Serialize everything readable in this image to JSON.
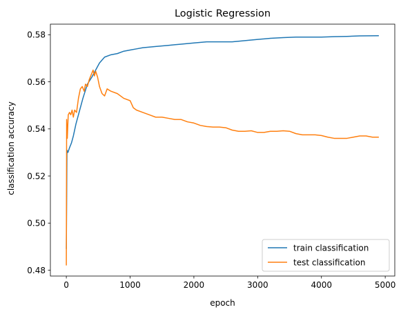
{
  "chart_data": {
    "type": "line",
    "title": "Logistic Regression",
    "xlabel": "epoch",
    "ylabel": "classification accuracy",
    "xlim": [
      -250,
      5150
    ],
    "ylim": [
      0.4775,
      0.5845
    ],
    "xticks": [
      0,
      1000,
      2000,
      3000,
      4000,
      5000
    ],
    "xtick_labels": [
      "0",
      "1000",
      "2000",
      "3000",
      "4000",
      "5000"
    ],
    "yticks": [
      0.48,
      0.5,
      0.52,
      0.54,
      0.56,
      0.58
    ],
    "ytick_labels": [
      "0.48",
      "0.50",
      "0.52",
      "0.54",
      "0.56",
      "0.58"
    ],
    "grid": false,
    "legend_position": "lower-right",
    "series": [
      {
        "name": "train classification",
        "color": "#1f77b4",
        "points": [
          [
            0,
            0.489
          ],
          [
            10,
            0.531
          ],
          [
            25,
            0.53
          ],
          [
            50,
            0.532
          ],
          [
            80,
            0.534
          ],
          [
            110,
            0.537
          ],
          [
            150,
            0.542
          ],
          [
            200,
            0.547
          ],
          [
            260,
            0.553
          ],
          [
            330,
            0.559
          ],
          [
            400,
            0.562
          ],
          [
            460,
            0.565
          ],
          [
            520,
            0.568
          ],
          [
            600,
            0.5705
          ],
          [
            700,
            0.5715
          ],
          [
            800,
            0.572
          ],
          [
            900,
            0.573
          ],
          [
            1000,
            0.5735
          ],
          [
            1100,
            0.574
          ],
          [
            1200,
            0.5745
          ],
          [
            1400,
            0.575
          ],
          [
            1600,
            0.5755
          ],
          [
            1800,
            0.576
          ],
          [
            2000,
            0.5765
          ],
          [
            2200,
            0.577
          ],
          [
            2400,
            0.577
          ],
          [
            2600,
            0.577
          ],
          [
            2800,
            0.5775
          ],
          [
            3000,
            0.578
          ],
          [
            3200,
            0.5785
          ],
          [
            3400,
            0.5788
          ],
          [
            3600,
            0.579
          ],
          [
            3800,
            0.579
          ],
          [
            4000,
            0.579
          ],
          [
            4200,
            0.5792
          ],
          [
            4400,
            0.5793
          ],
          [
            4600,
            0.5795
          ],
          [
            4900,
            0.5796
          ]
        ]
      },
      {
        "name": "test classification",
        "color": "#ff7f0e",
        "points": [
          [
            0,
            0.482
          ],
          [
            5,
            0.544
          ],
          [
            15,
            0.536
          ],
          [
            30,
            0.546
          ],
          [
            50,
            0.547
          ],
          [
            70,
            0.546
          ],
          [
            90,
            0.548
          ],
          [
            110,
            0.545
          ],
          [
            130,
            0.548
          ],
          [
            160,
            0.547
          ],
          [
            190,
            0.553
          ],
          [
            220,
            0.557
          ],
          [
            250,
            0.558
          ],
          [
            280,
            0.556
          ],
          [
            300,
            0.559
          ],
          [
            330,
            0.558
          ],
          [
            360,
            0.561
          ],
          [
            390,
            0.563
          ],
          [
            420,
            0.565
          ],
          [
            440,
            0.5625
          ],
          [
            460,
            0.5645
          ],
          [
            490,
            0.562
          ],
          [
            520,
            0.558
          ],
          [
            560,
            0.555
          ],
          [
            600,
            0.554
          ],
          [
            640,
            0.557
          ],
          [
            700,
            0.556
          ],
          [
            800,
            0.555
          ],
          [
            900,
            0.553
          ],
          [
            1000,
            0.552
          ],
          [
            1050,
            0.549
          ],
          [
            1100,
            0.548
          ],
          [
            1200,
            0.547
          ],
          [
            1300,
            0.546
          ],
          [
            1400,
            0.545
          ],
          [
            1500,
            0.545
          ],
          [
            1600,
            0.5445
          ],
          [
            1700,
            0.544
          ],
          [
            1800,
            0.544
          ],
          [
            1900,
            0.543
          ],
          [
            2000,
            0.5425
          ],
          [
            2100,
            0.5415
          ],
          [
            2200,
            0.541
          ],
          [
            2300,
            0.5408
          ],
          [
            2400,
            0.5408
          ],
          [
            2500,
            0.5405
          ],
          [
            2600,
            0.5395
          ],
          [
            2700,
            0.539
          ],
          [
            2800,
            0.539
          ],
          [
            2900,
            0.5392
          ],
          [
            3000,
            0.5385
          ],
          [
            3100,
            0.5385
          ],
          [
            3200,
            0.539
          ],
          [
            3300,
            0.539
          ],
          [
            3400,
            0.5392
          ],
          [
            3500,
            0.539
          ],
          [
            3600,
            0.538
          ],
          [
            3700,
            0.5375
          ],
          [
            3800,
            0.5375
          ],
          [
            3900,
            0.5375
          ],
          [
            4000,
            0.5372
          ],
          [
            4100,
            0.5365
          ],
          [
            4200,
            0.536
          ],
          [
            4300,
            0.536
          ],
          [
            4400,
            0.536
          ],
          [
            4500,
            0.5365
          ],
          [
            4600,
            0.537
          ],
          [
            4700,
            0.537
          ],
          [
            4800,
            0.5365
          ],
          [
            4900,
            0.5365
          ]
        ]
      }
    ]
  }
}
